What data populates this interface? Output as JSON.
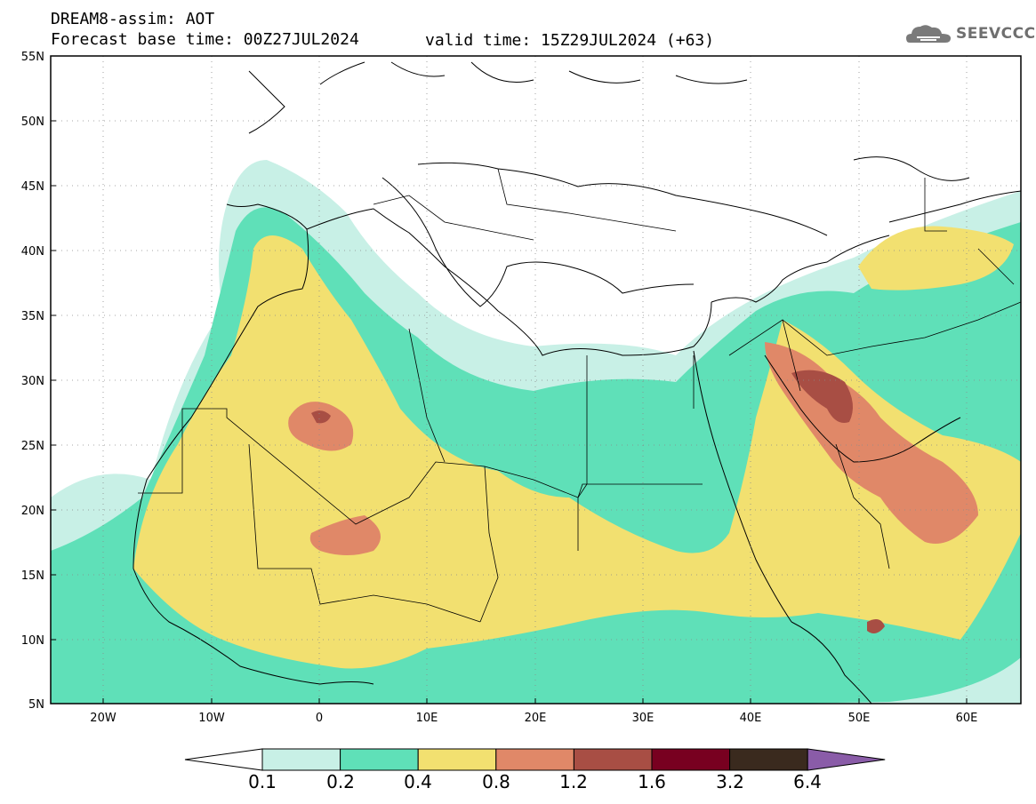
{
  "header": {
    "title": "DREAM8-assim: AOT",
    "base_time": "Forecast base time: 00Z27JUL2024",
    "valid_time": "valid time: 15Z29JUL2024 (+63)",
    "logo_text": "SEEVCCC"
  },
  "map": {
    "lat_labels": [
      "55N",
      "50N",
      "45N",
      "40N",
      "35N",
      "30N",
      "25N",
      "20N",
      "15N",
      "10N",
      "5N"
    ],
    "lon_labels": [
      "20W",
      "10W",
      "0",
      "10E",
      "20E",
      "30E",
      "40E",
      "50E",
      "60E"
    ],
    "lon_range": [
      -25,
      65
    ],
    "lat_range": [
      5,
      55
    ],
    "gridlines": "dotted"
  },
  "legend": {
    "levels": [
      "0.1",
      "0.2",
      "0.4",
      "0.8",
      "1.2",
      "1.6",
      "3.2",
      "6.4"
    ],
    "colors": [
      "#c8f0e6",
      "#5fe0b8",
      "#f2e070",
      "#e08868",
      "#a84e44",
      "#780020",
      "#3a2a1e",
      "#8a5ca8"
    ]
  }
}
